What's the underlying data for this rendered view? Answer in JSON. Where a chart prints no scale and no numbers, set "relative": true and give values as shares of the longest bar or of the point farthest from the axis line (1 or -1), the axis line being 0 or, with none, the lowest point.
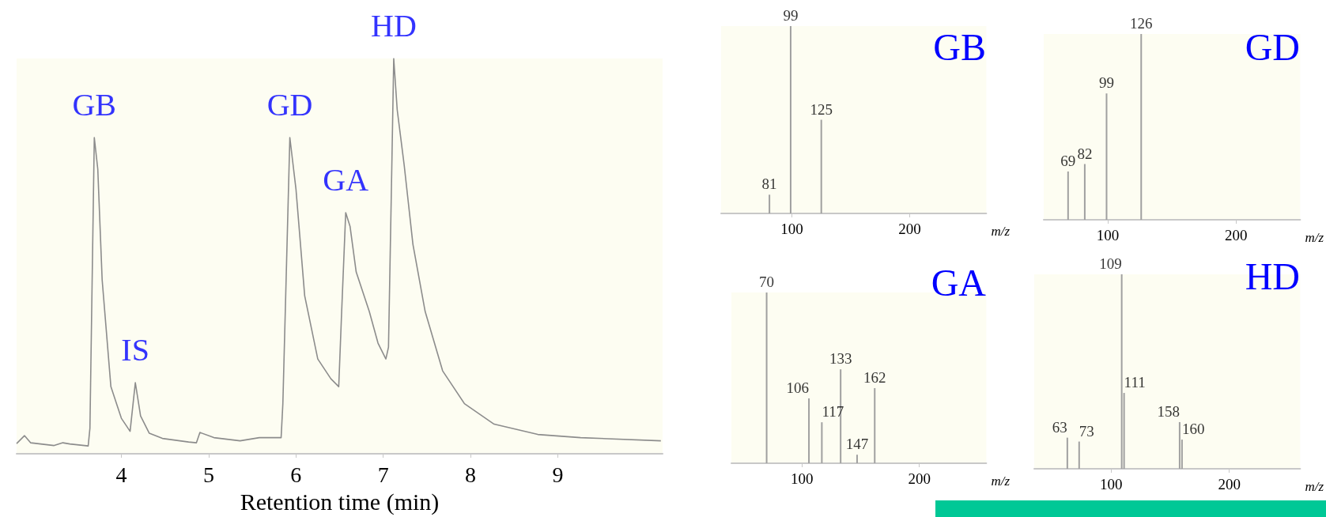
{
  "chart_data": [
    {
      "type": "line",
      "relative": true,
      "color": "#8c8c8c",
      "xlim": [
        2.8,
        10.2
      ],
      "xticks": [
        4,
        5,
        6,
        7,
        8,
        9
      ],
      "xlabel": "Retention time (min)",
      "x": [
        2.8,
        2.89,
        2.96,
        3.23,
        3.33,
        3.41,
        3.62,
        3.64,
        3.69,
        3.73,
        3.78,
        3.88,
        4.0,
        4.1,
        4.16,
        4.22,
        4.32,
        4.47,
        4.77,
        4.86,
        4.9,
        5.06,
        5.36,
        5.58,
        5.83,
        5.85,
        5.93,
        6.0,
        6.1,
        6.25,
        6.4,
        6.49,
        6.52,
        6.57,
        6.62,
        6.69,
        6.84,
        6.94,
        7.03,
        7.06,
        7.1,
        7.12,
        7.16,
        7.24,
        7.34,
        7.48,
        7.68,
        7.93,
        8.27,
        8.77,
        9.26,
        10.18
      ],
      "values": [
        0.026,
        0.046,
        0.028,
        0.021,
        0.028,
        0.025,
        0.02,
        0.065,
        0.8,
        0.72,
        0.44,
        0.17,
        0.09,
        0.057,
        0.18,
        0.096,
        0.052,
        0.039,
        0.03,
        0.028,
        0.054,
        0.041,
        0.033,
        0.041,
        0.041,
        0.127,
        0.8,
        0.67,
        0.4,
        0.24,
        0.19,
        0.17,
        0.34,
        0.61,
        0.575,
        0.46,
        0.36,
        0.28,
        0.24,
        0.27,
        0.75,
        1.0,
        0.87,
        0.73,
        0.53,
        0.36,
        0.21,
        0.127,
        0.075,
        0.049,
        0.041,
        0.033
      ],
      "annotations": [
        {
          "text": "GB",
          "x": 3.69,
          "y": 0.8
        },
        {
          "text": "IS",
          "x": 4.16,
          "y": 0.18
        },
        {
          "text": "GD",
          "x": 5.93,
          "y": 0.8
        },
        {
          "text": "GA",
          "x": 6.57,
          "y": 0.61
        },
        {
          "text": "HD",
          "x": 7.12,
          "y": 1.0
        }
      ]
    },
    {
      "type": "bar",
      "relative": true,
      "title": "GB",
      "xlabel": "m/z",
      "color": "#a0a0a0",
      "xlim": [
        40,
        265
      ],
      "xticks": [
        100,
        200
      ],
      "x": [
        81,
        99,
        125
      ],
      "values": [
        0.1,
        1,
        0.5
      ],
      "annotations": [
        {
          "text": "81",
          "x": 81,
          "y": 0.1
        },
        {
          "text": "99",
          "x": 99,
          "y": 1
        },
        {
          "text": "125",
          "x": 125,
          "y": 0.5
        }
      ]
    },
    {
      "type": "bar",
      "relative": true,
      "title": "GD",
      "xlabel": "m/z",
      "color": "#a0a0a0",
      "xlim": [
        50,
        250
      ],
      "xticks": [
        100,
        200
      ],
      "x": [
        69,
        82,
        99,
        126
      ],
      "values": [
        0.26,
        0.3,
        0.68,
        1
      ],
      "annotations": [
        {
          "text": "69",
          "x": 69,
          "y": 0.26
        },
        {
          "text": "82",
          "x": 82,
          "y": 0.3
        },
        {
          "text": "99",
          "x": 99,
          "y": 0.68
        },
        {
          "text": "126",
          "x": 126,
          "y": 1
        }
      ]
    },
    {
      "type": "bar",
      "relative": true,
      "title": "GA",
      "xlabel": "m/z",
      "color": "#a0a0a0",
      "xlim": [
        40,
        257
      ],
      "xticks": [
        100,
        200
      ],
      "x": [
        70,
        106,
        117,
        133,
        147,
        162
      ],
      "values": [
        1,
        0.38,
        0.24,
        0.55,
        0.05,
        0.44
      ],
      "annotations": [
        {
          "text": "70",
          "x": 70,
          "y": 1
        },
        {
          "text": "106",
          "x": 106,
          "y": 0.38
        },
        {
          "text": "117",
          "x": 117,
          "y": 0.24
        },
        {
          "text": "133",
          "x": 133,
          "y": 0.55
        },
        {
          "text": "147",
          "x": 147,
          "y": 0.05
        },
        {
          "text": "162",
          "x": 162,
          "y": 0.44
        }
      ]
    },
    {
      "type": "bar",
      "relative": true,
      "title": "HD",
      "xlabel": "m/z",
      "color": "#a0a0a0",
      "xlim": [
        35,
        260
      ],
      "xticks": [
        100,
        200
      ],
      "x": [
        63,
        73,
        109,
        111,
        158,
        160
      ],
      "values": [
        0.16,
        0.14,
        1,
        0.39,
        0.24,
        0.15
      ],
      "annotations": [
        {
          "text": "63",
          "x": 63,
          "y": 0.16
        },
        {
          "text": "73",
          "x": 73,
          "y": 0.14
        },
        {
          "text": "109",
          "x": 109,
          "y": 1
        },
        {
          "text": "111",
          "x": 111,
          "y": 0.39
        },
        {
          "text": "158",
          "x": 158,
          "y": 0.24
        },
        {
          "text": "160",
          "x": 160,
          "y": 0.15
        }
      ]
    }
  ]
}
